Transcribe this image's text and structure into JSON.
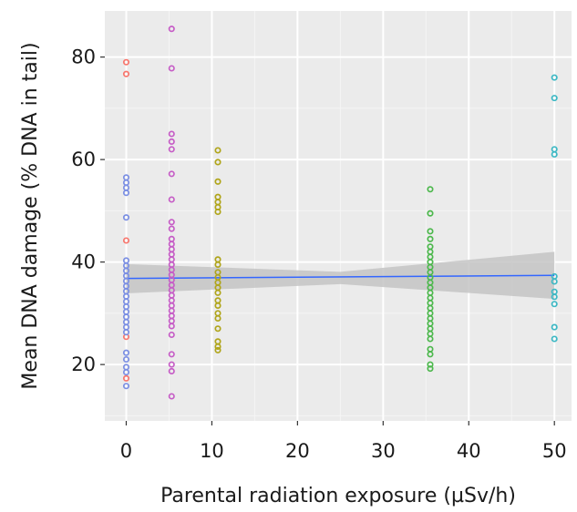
{
  "chart_data": {
    "type": "scatter",
    "title": "",
    "xlabel": "Parental radiation exposure (µSv/h)",
    "ylabel": "Mean DNA damage (% DNA in tail)",
    "xlim": [
      -2.5,
      52
    ],
    "ylim": [
      9,
      89
    ],
    "xticks": [
      0,
      10,
      20,
      30,
      40,
      50
    ],
    "yticks": [
      20,
      40,
      60,
      80
    ],
    "grid": true,
    "legend": "none",
    "colors": {
      "panel": "#ebebeb",
      "grid_major": "#ffffff",
      "grid_minor": "#f5f5f5",
      "ribbon": "#c4c4c4",
      "trend": "#3366ff"
    },
    "series": [
      {
        "color": "#f8766d",
        "x": 0,
        "y": [
          79,
          76.7,
          44.2,
          25.4,
          17.3
        ]
      },
      {
        "color": "#7b8fe3",
        "x": 0,
        "y": [
          56.5,
          55.5,
          54.5,
          53.5,
          48.7,
          40.3,
          39.3,
          38.3,
          37.3,
          36.3,
          35.3,
          34.3,
          33.3,
          32.3,
          31.3,
          30.3,
          29.3,
          28.3,
          27.3,
          26.3,
          22.3,
          21,
          19.5,
          18.5,
          15.8
        ]
      },
      {
        "color": "#c65dc6",
        "x": 5.3,
        "y": [
          85.5,
          77.8,
          65,
          63.5,
          62,
          57.2,
          52.2,
          47.8,
          46.5,
          44.5,
          43.5,
          42.5,
          41.5,
          40.5,
          39.5,
          38.5,
          37.5,
          36.5,
          35.5,
          34.5,
          33.5,
          32.5,
          31.5,
          30.5,
          29.5,
          28.5,
          27.5,
          25.8,
          22,
          20,
          18.7,
          13.8
        ]
      },
      {
        "color": "#b0a51a",
        "x": 10.7,
        "y": [
          61.8,
          59.5,
          55.7,
          52.7,
          51.7,
          50.7,
          49.8,
          40.5,
          39.5,
          38,
          37,
          36,
          35,
          34,
          32.5,
          31.5,
          30,
          29,
          27,
          24.5,
          23.5,
          22.8
        ]
      },
      {
        "color": "#4cb84c",
        "x": 35.5,
        "y": [
          54.2,
          49.5,
          46,
          44.5,
          43,
          42,
          41,
          40,
          39,
          38,
          37,
          36,
          35,
          34,
          33,
          32,
          31,
          30,
          29,
          28,
          27,
          26,
          25,
          23,
          22,
          20,
          19.2
        ]
      },
      {
        "color": "#3cb8c4",
        "x": 50,
        "y": [
          76,
          72,
          62,
          61,
          37.2,
          36.2,
          34.2,
          33.2,
          31.8,
          27.3,
          25
        ]
      }
    ],
    "trend": {
      "x": [
        0,
        50
      ],
      "y": [
        36.8,
        37.4
      ]
    },
    "ribbon": {
      "x": [
        0,
        25,
        50
      ],
      "upper": [
        39.6,
        38.1,
        42.0
      ],
      "lower": [
        33.9,
        35.7,
        32.8
      ]
    }
  }
}
